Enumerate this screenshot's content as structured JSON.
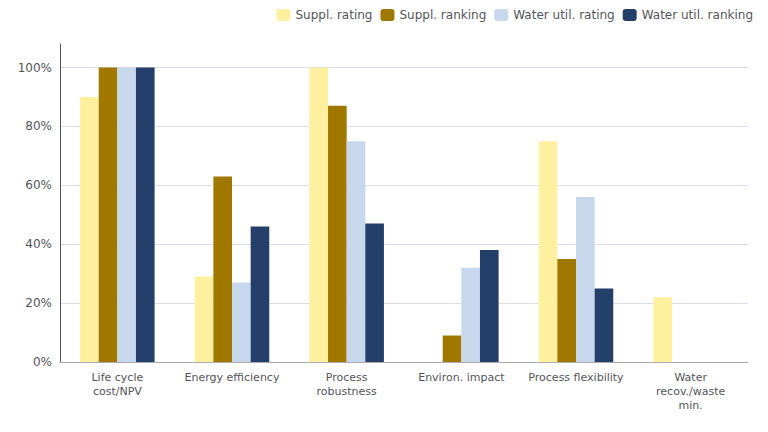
{
  "chart_data": {
    "type": "bar",
    "categories": [
      "Life cycle\ncost/NPV",
      "Energy efficiency",
      "Process\nrobustness",
      "Environ. impact",
      "Process flexibility",
      "Water\nrecov./waste\nmin."
    ],
    "series": [
      {
        "name": "Suppl. rating",
        "color": "#FFF0A0",
        "values": [
          0.9,
          0.29,
          1.0,
          0.0,
          0.75,
          0.22
        ]
      },
      {
        "name": "Suppl. ranking",
        "color": "#A07800",
        "values": [
          1.0,
          0.63,
          0.87,
          0.09,
          0.35,
          0.0
        ]
      },
      {
        "name": "Water util. rating",
        "color": "#C8D8EC",
        "values": [
          1.0,
          0.27,
          0.75,
          0.32,
          0.56,
          0.0
        ]
      },
      {
        "name": "Water util. ranking",
        "color": "#243F6A",
        "values": [
          1.0,
          0.46,
          0.47,
          0.38,
          0.25,
          0.0
        ]
      }
    ],
    "ylim": [
      0,
      1.08
    ],
    "yticks": [
      {
        "value": 0.0,
        "label": "0%"
      },
      {
        "value": 0.2,
        "label": "20%"
      },
      {
        "value": 0.4,
        "label": "40%"
      },
      {
        "value": 0.6,
        "label": "60%"
      },
      {
        "value": 0.8,
        "label": "80%"
      },
      {
        "value": 1.0,
        "label": "100%"
      }
    ],
    "grid": true,
    "legend": "upper right"
  }
}
